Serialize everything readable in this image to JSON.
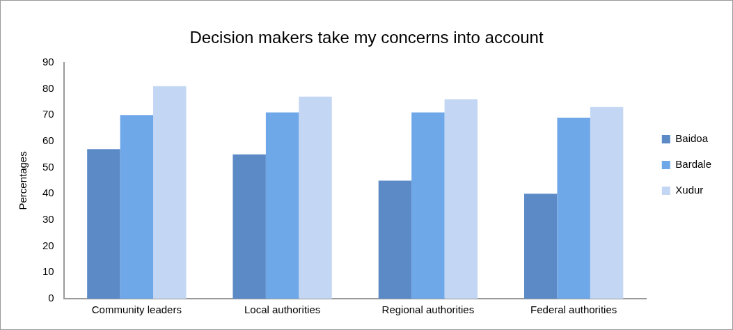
{
  "chart_data": {
    "type": "bar",
    "title": "Decision makers take my concerns into account",
    "ylabel": "Percentages",
    "categories": [
      "Community leaders",
      "Local authorities",
      "Regional authorities",
      "Federal authorities"
    ],
    "series": [
      {
        "name": "Baidoa",
        "color": "#5b8ac6",
        "values": [
          57,
          55,
          45,
          40
        ]
      },
      {
        "name": "Bardale",
        "color": "#6fa8e8",
        "values": [
          70,
          71,
          71,
          69
        ]
      },
      {
        "name": "Xudur",
        "color": "#c3d6f3",
        "values": [
          81,
          77,
          76,
          73
        ]
      }
    ],
    "ylim": [
      0,
      90
    ],
    "yticks": [
      0,
      10,
      20,
      30,
      40,
      50,
      60,
      70,
      80,
      90
    ],
    "grid": false,
    "legend": "right"
  }
}
